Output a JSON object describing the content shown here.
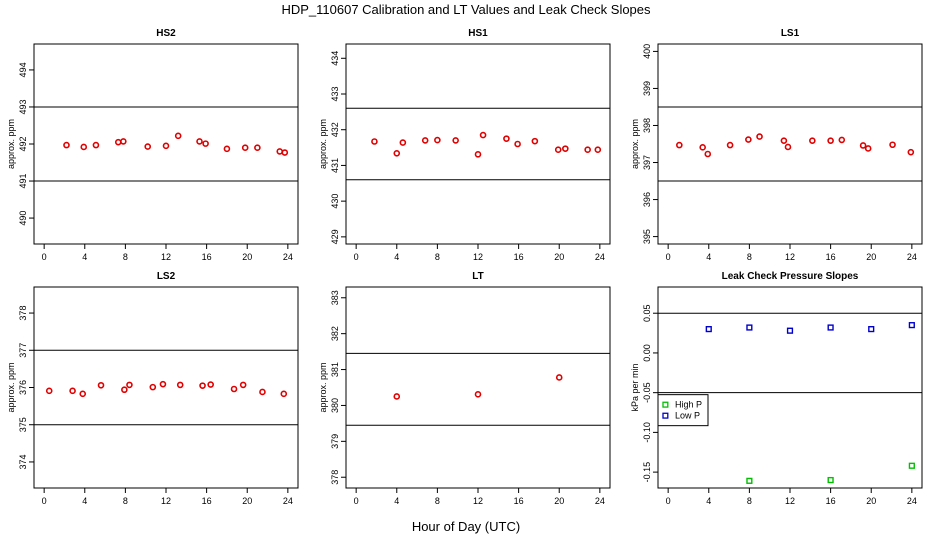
{
  "figure": {
    "title": "HDP_110607  Calibration and LT Values and Leak Check Slopes",
    "xlabel": "Hour of Day (UTC)"
  },
  "chart_data": [
    {
      "type": "scatter",
      "title": "HS2",
      "ylabel": "approx. ppm",
      "xlim": [
        -1,
        25
      ],
      "ylim": [
        489.3,
        494.7
      ],
      "xticks": [
        0,
        4,
        8,
        12,
        16,
        20,
        24
      ],
      "yticks": [
        490,
        491,
        492,
        493,
        494
      ],
      "hlines": [
        493,
        491
      ],
      "series": [
        {
          "marker": "circle",
          "color": "#e00000",
          "x": [
            2.2,
            3.9,
            5.1,
            7.3,
            7.8,
            10.2,
            12.0,
            13.2,
            15.3,
            15.9,
            18.0,
            19.8,
            21.0,
            23.2,
            23.7
          ],
          "y": [
            491.97,
            491.92,
            491.97,
            492.05,
            492.07,
            491.93,
            491.95,
            492.22,
            492.07,
            492.01,
            491.87,
            491.9,
            491.9,
            491.8,
            491.77
          ]
        }
      ]
    },
    {
      "type": "scatter",
      "title": "HS1",
      "ylabel": "approx. ppm",
      "xlim": [
        -1,
        25
      ],
      "ylim": [
        428.8,
        434.4
      ],
      "xticks": [
        0,
        4,
        8,
        12,
        16,
        20,
        24
      ],
      "yticks": [
        429,
        430,
        431,
        432,
        433,
        434
      ],
      "hlines": [
        432.6,
        430.6
      ],
      "series": [
        {
          "marker": "circle",
          "color": "#e00000",
          "x": [
            1.8,
            4.0,
            4.6,
            6.8,
            8.0,
            9.8,
            12.0,
            12.5,
            14.8,
            15.9,
            17.6,
            19.9,
            20.6,
            22.8,
            23.8
          ],
          "y": [
            431.67,
            431.34,
            431.64,
            431.7,
            431.71,
            431.7,
            431.31,
            431.85,
            431.75,
            431.6,
            431.68,
            431.44,
            431.47,
            431.44,
            431.44
          ]
        }
      ]
    },
    {
      "type": "scatter",
      "title": "LS1",
      "ylabel": "approx. ppm",
      "xlim": [
        -1,
        25
      ],
      "ylim": [
        394.8,
        400.2
      ],
      "xticks": [
        0,
        4,
        8,
        12,
        16,
        20,
        24
      ],
      "yticks": [
        395,
        396,
        397,
        398,
        399,
        400
      ],
      "hlines": [
        398.5,
        396.5
      ],
      "series": [
        {
          "marker": "circle",
          "color": "#e00000",
          "x": [
            1.1,
            3.4,
            3.9,
            6.1,
            7.9,
            9.0,
            11.4,
            11.8,
            14.2,
            16.0,
            17.1,
            19.2,
            19.7,
            22.1,
            23.9
          ],
          "y": [
            397.47,
            397.41,
            397.23,
            397.47,
            397.62,
            397.7,
            397.59,
            397.42,
            397.59,
            397.59,
            397.61,
            397.46,
            397.38,
            397.48,
            397.28
          ]
        }
      ]
    },
    {
      "type": "scatter",
      "title": "LS2",
      "ylabel": "approx. ppm",
      "xlim": [
        -1,
        25
      ],
      "ylim": [
        373.3,
        378.7
      ],
      "xticks": [
        0,
        4,
        8,
        12,
        16,
        20,
        24
      ],
      "yticks": [
        374,
        375,
        376,
        377,
        378
      ],
      "hlines": [
        377,
        375
      ],
      "series": [
        {
          "marker": "circle",
          "color": "#e00000",
          "x": [
            0.5,
            2.8,
            3.8,
            5.6,
            7.9,
            8.4,
            10.7,
            11.7,
            13.4,
            15.6,
            16.4,
            18.7,
            19.6,
            21.5,
            23.6
          ],
          "y": [
            375.91,
            375.91,
            375.83,
            376.06,
            375.94,
            376.07,
            376.01,
            376.09,
            376.07,
            376.05,
            376.08,
            375.96,
            376.07,
            375.88,
            375.83
          ]
        }
      ]
    },
    {
      "type": "scatter",
      "title": "LT",
      "ylabel": "approx. ppm",
      "xlim": [
        -1,
        25
      ],
      "ylim": [
        377.7,
        383.3
      ],
      "xticks": [
        0,
        4,
        8,
        12,
        16,
        20,
        24
      ],
      "yticks": [
        378,
        379,
        380,
        381,
        382,
        383
      ],
      "hlines": [
        381.45,
        379.45
      ],
      "series": [
        {
          "marker": "circle",
          "color": "#e00000",
          "x": [
            4.0,
            12.0,
            20.0
          ],
          "y": [
            380.25,
            380.31,
            380.78
          ]
        }
      ]
    },
    {
      "type": "scatter",
      "title": "Leak Check Pressure Slopes",
      "ylabel": "kPa per min",
      "xlim": [
        -1,
        25
      ],
      "ylim": [
        -0.17,
        0.083
      ],
      "xticks": [
        0,
        4,
        8,
        12,
        16,
        20,
        24
      ],
      "yticks": [
        -0.15,
        -0.1,
        -0.05,
        0.0,
        0.05
      ],
      "ytick_labels": [
        "-0.15",
        "-0.10",
        "-0.05",
        "0.00",
        "0.05"
      ],
      "hlines": [
        0.05,
        -0.05
      ],
      "legend": "left",
      "series": [
        {
          "name": "High P",
          "marker": "square",
          "color": "#00c000",
          "x": [
            8,
            16,
            24
          ],
          "y": [
            -0.161,
            -0.16,
            -0.142
          ]
        },
        {
          "name": "Low P",
          "marker": "square",
          "color": "#0000cc",
          "x": [
            4,
            8,
            12,
            16,
            20,
            24
          ],
          "y": [
            0.03,
            0.032,
            0.028,
            0.032,
            0.03,
            0.035
          ]
        }
      ]
    }
  ]
}
